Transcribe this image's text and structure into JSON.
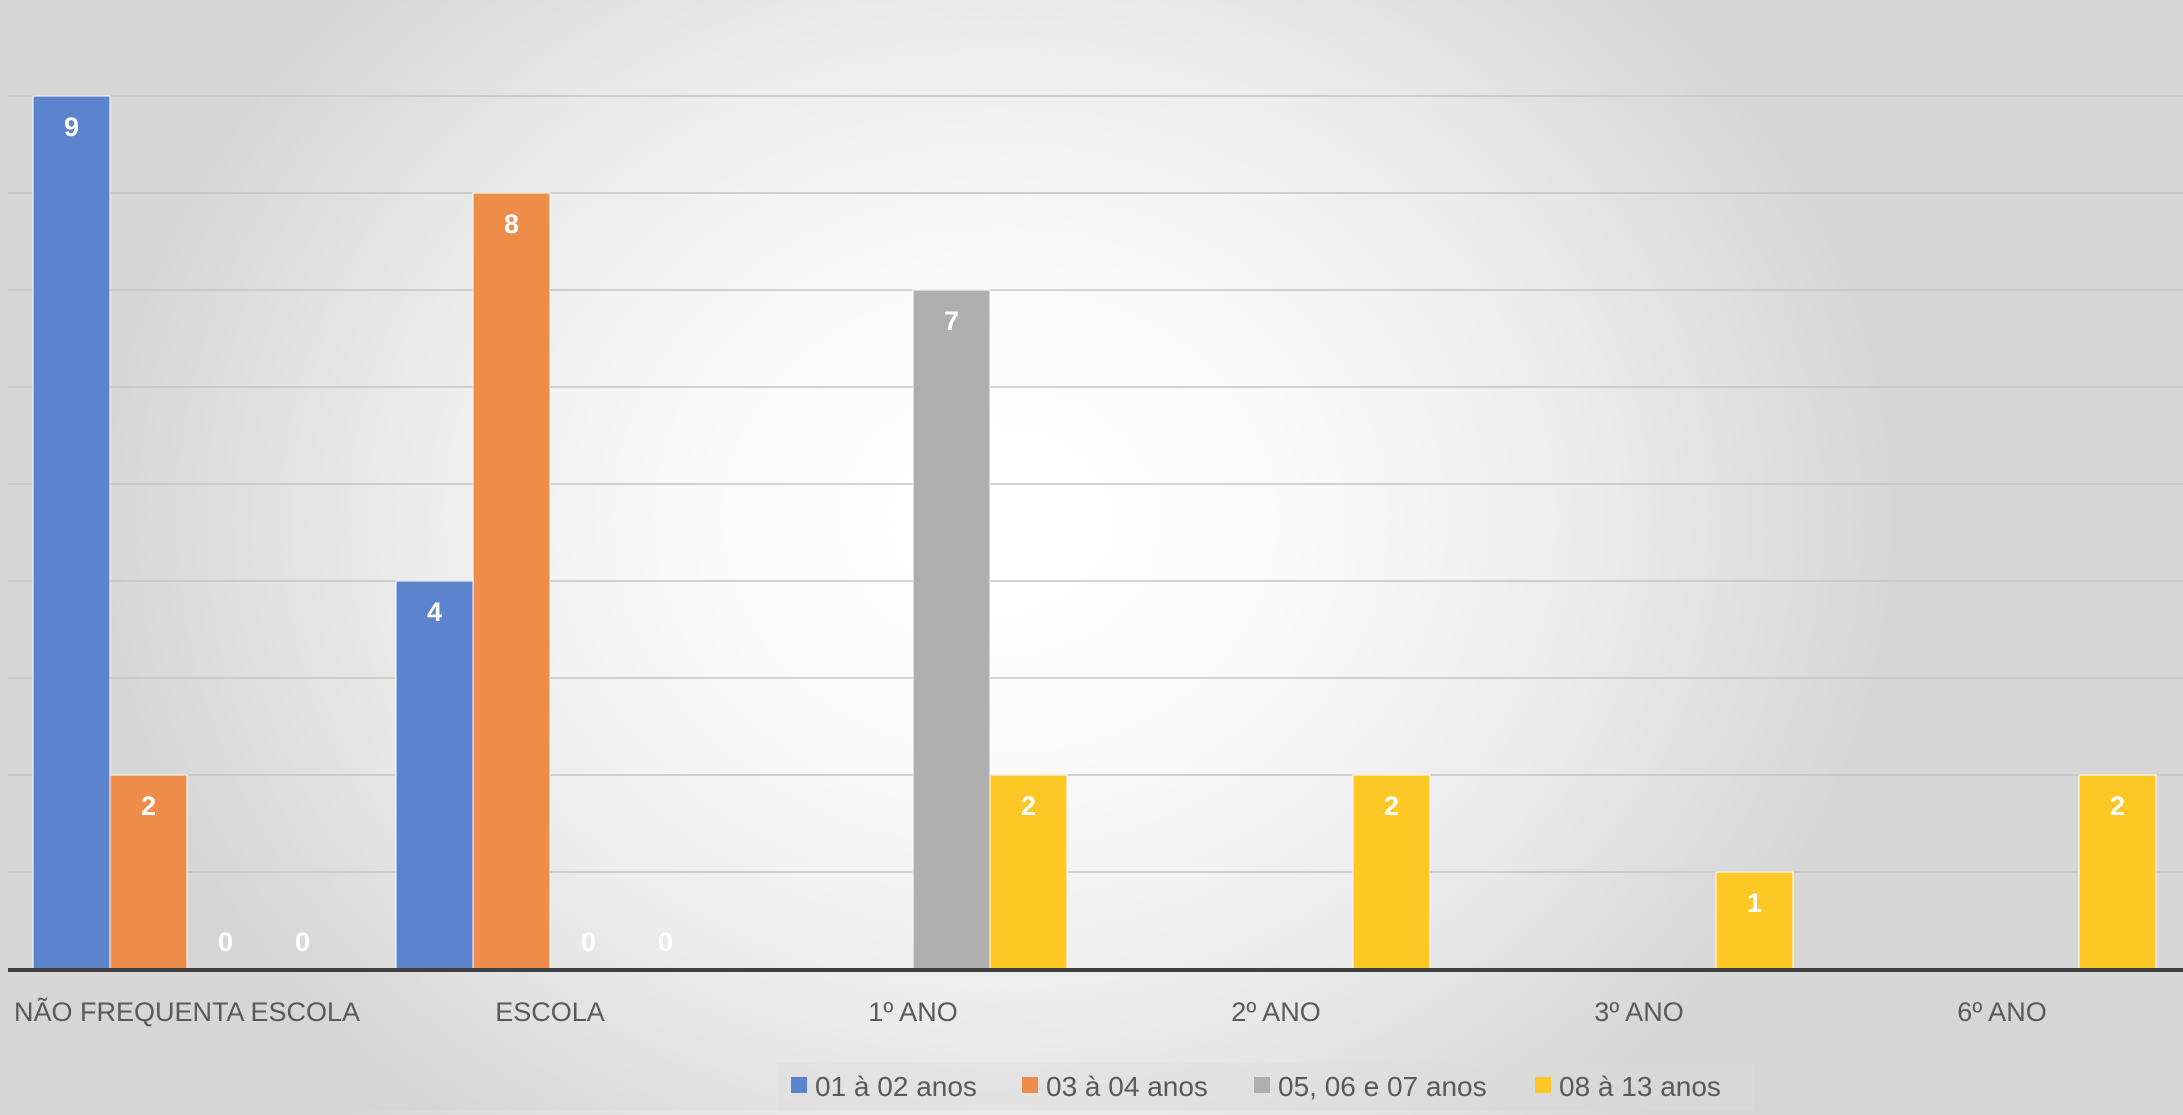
{
  "chart_data": {
    "type": "bar",
    "categories": [
      "NÃO FREQUENTA ESCOLA",
      "ESCOLA",
      "1º ANO",
      "2º ANO",
      "3º ANO",
      "6º ANO"
    ],
    "series": [
      {
        "name": "01 à 02 anos",
        "color": "#5B84CC",
        "values": [
          9,
          4,
          null,
          null,
          null,
          null
        ]
      },
      {
        "name": "03 à 04 anos",
        "color": "#EE8D4A",
        "values": [
          2,
          8,
          null,
          null,
          null,
          null
        ]
      },
      {
        "name": "05, 06 e 07 anos",
        "color": "#AFAFAF",
        "values": [
          0,
          0,
          7,
          null,
          null,
          null
        ]
      },
      {
        "name": "08 à 13 anos",
        "color": "#FDC825",
        "values": [
          0,
          0,
          2,
          2,
          1,
          2
        ]
      }
    ],
    "ylim": [
      0,
      9
    ],
    "grid": true,
    "legend_position": "bottom",
    "data_label_color": "#ffffff"
  }
}
